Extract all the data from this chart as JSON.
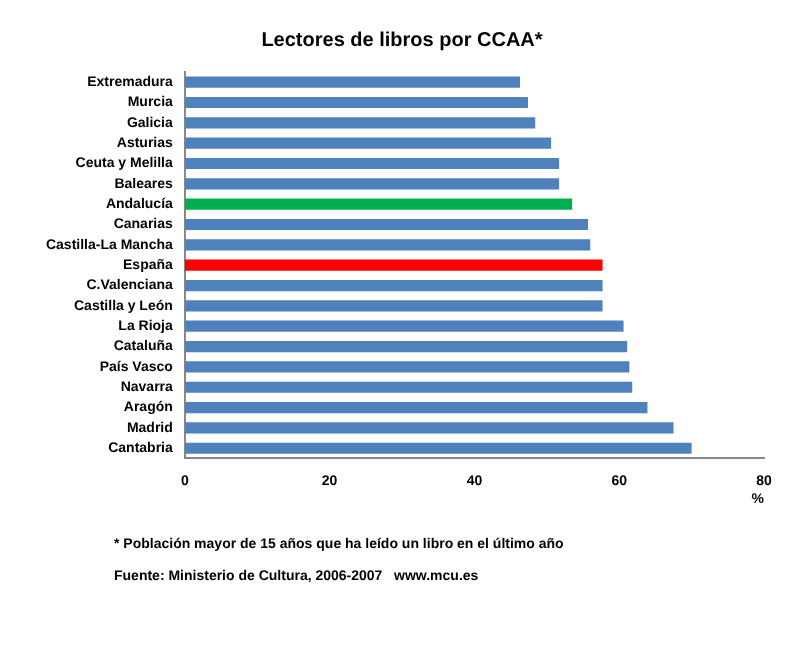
{
  "chart_data": {
    "type": "bar",
    "orientation": "horizontal",
    "title": "Lectores de libros por CCAA*",
    "xlabel": "%",
    "categories": [
      "Extremadura",
      "Murcia",
      "Galicia",
      "Asturias",
      "Ceuta y Melilla",
      "Baleares",
      "Andalucía",
      "Canarias",
      "Castilla-La Mancha",
      "España",
      "C.Valenciana",
      "Castilla y León",
      "La Rioja",
      "Cataluña",
      "País Vasco",
      "Navarra",
      "Aragón",
      "Madrid",
      "Cantabria"
    ],
    "values": [
      46.3,
      47.4,
      48.4,
      50.6,
      51.7,
      51.7,
      53.5,
      55.7,
      56.0,
      57.7,
      57.7,
      57.7,
      60.6,
      61.1,
      61.4,
      61.8,
      63.9,
      67.5,
      70.0
    ],
    "colors": [
      "#4f81bd",
      "#4f81bd",
      "#4f81bd",
      "#4f81bd",
      "#4f81bd",
      "#4f81bd",
      "#00b050",
      "#4f81bd",
      "#4f81bd",
      "#ff0000",
      "#4f81bd",
      "#4f81bd",
      "#4f81bd",
      "#4f81bd",
      "#4f81bd",
      "#4f81bd",
      "#4f81bd",
      "#4f81bd",
      "#4f81bd"
    ],
    "xlim": [
      0,
      80
    ],
    "xticks": [
      0,
      20,
      40,
      60,
      80
    ],
    "grid": false,
    "legend": false,
    "annotations": [
      "* Población mayor de 15 años que ha leído un libro en el último año",
      "Fuente: Ministerio de Cultura, 2006-2007   www.mcu.es"
    ]
  }
}
